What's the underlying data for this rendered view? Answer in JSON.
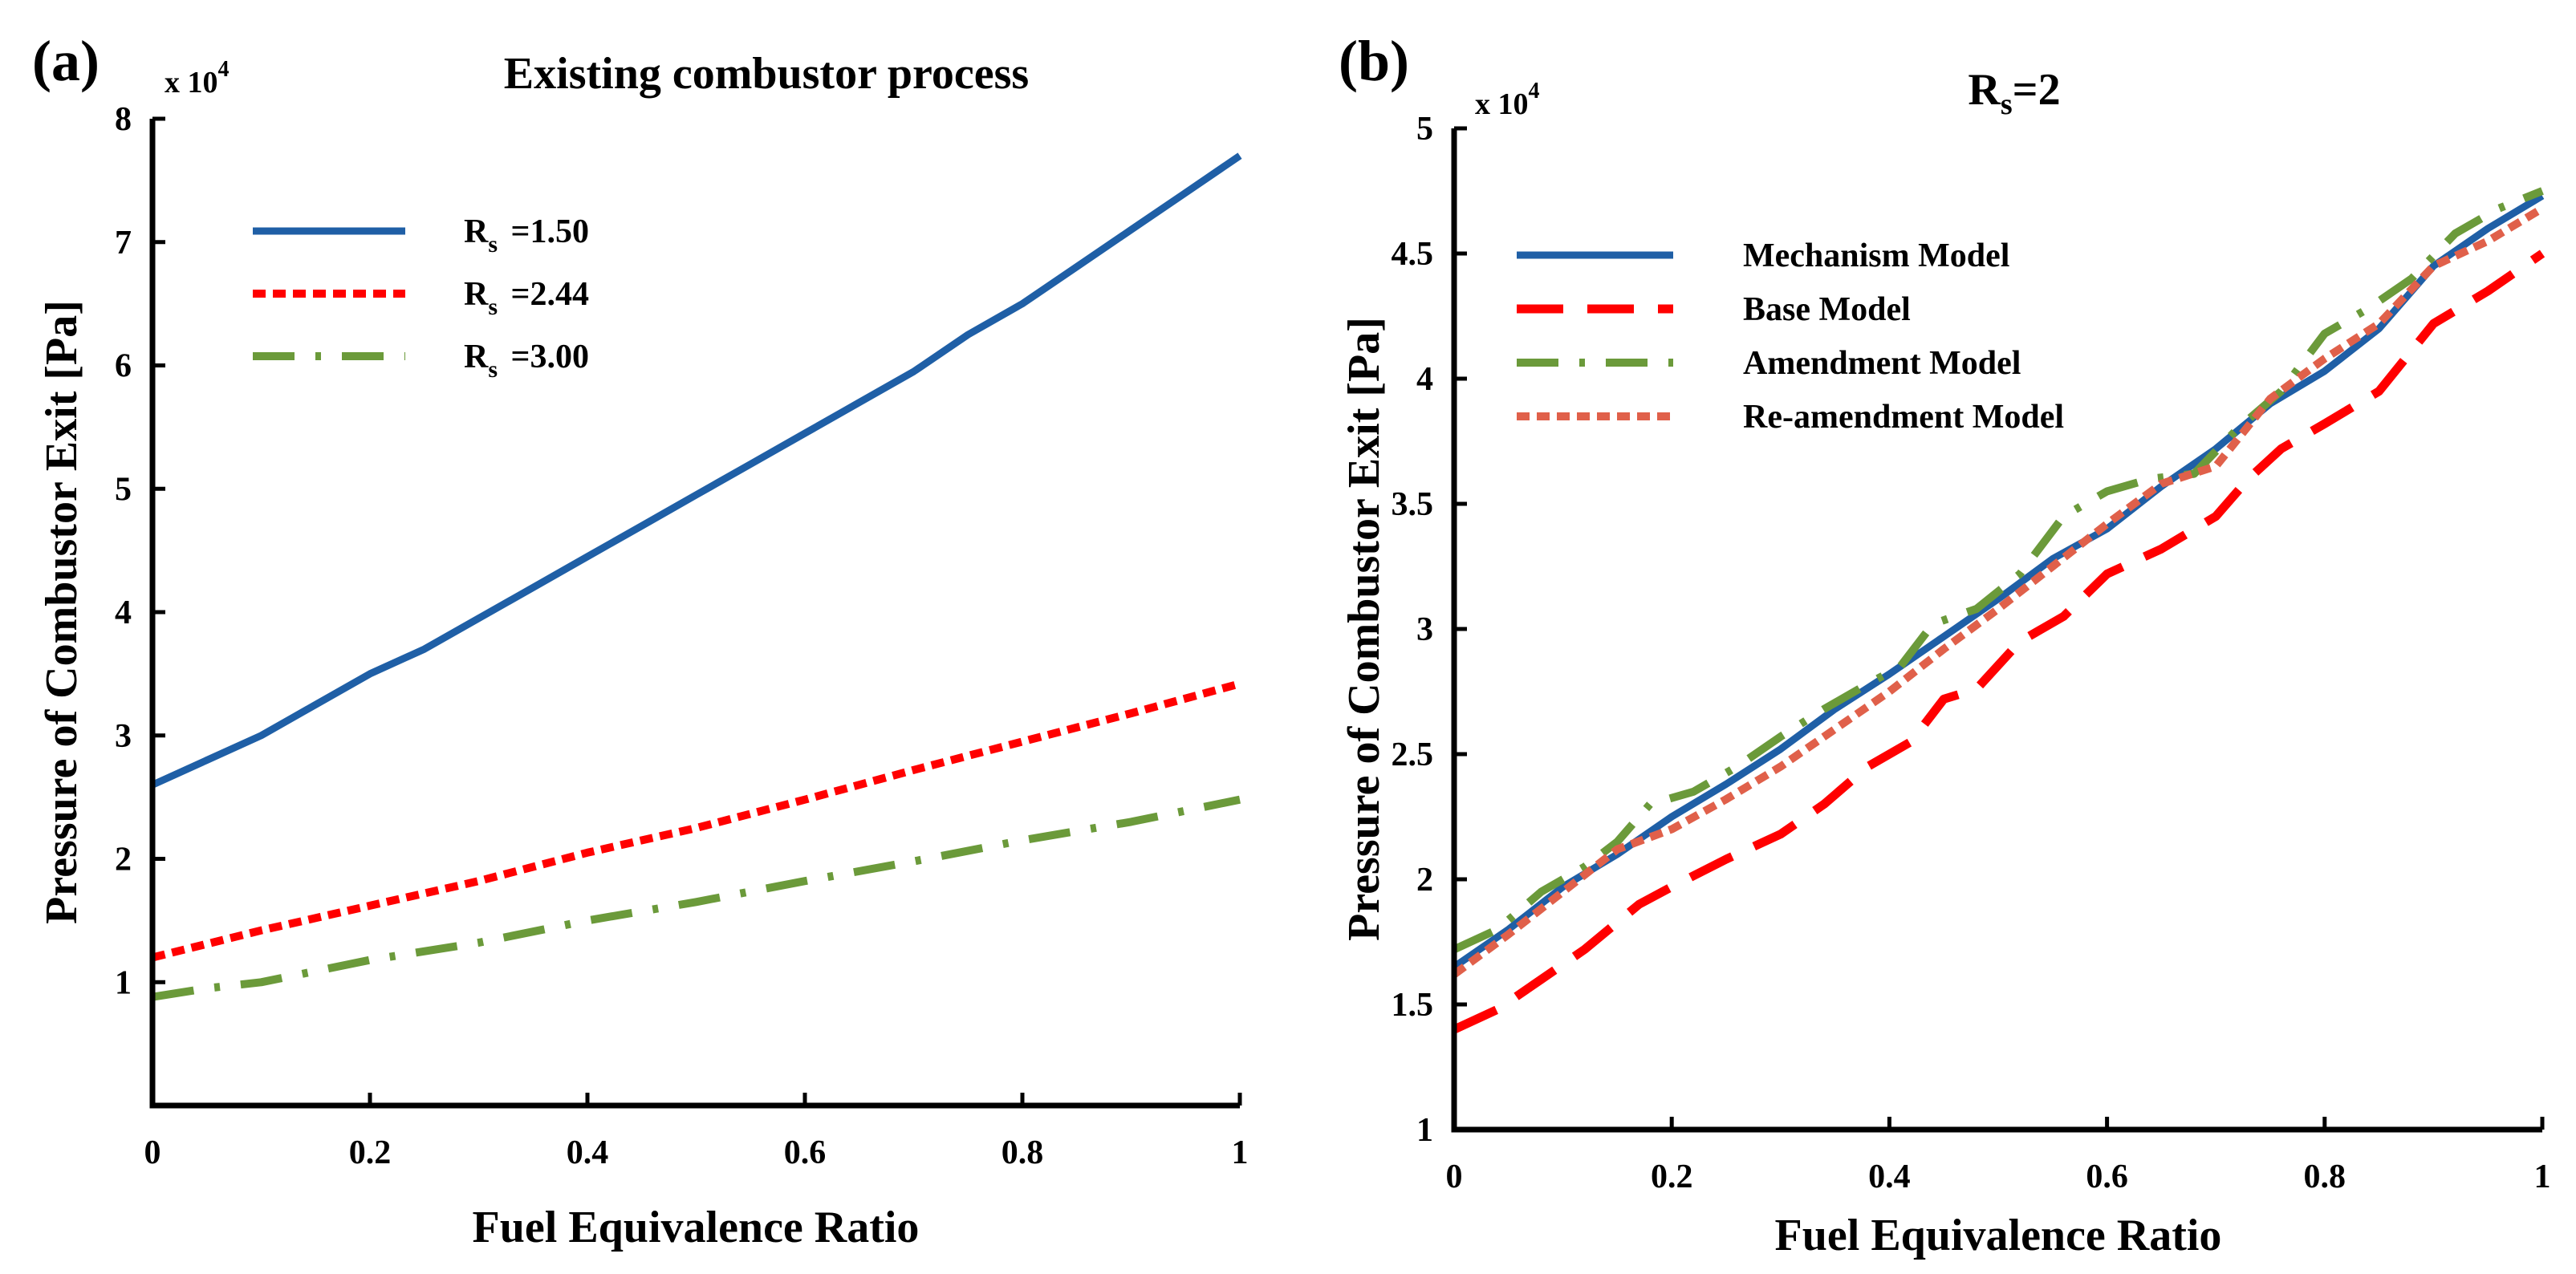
{
  "chart_data": [
    {
      "type": "line",
      "panel_label": "(a)",
      "title": "Existing combustor process",
      "xlabel": "Fuel Equivalence Ratio",
      "ylabel": "Pressure of Combustor Exit [Pa]",
      "y_multiplier": {
        "base": "x 10",
        "exp": "4"
      },
      "xlim": [
        0,
        1
      ],
      "ylim": [
        0,
        8
      ],
      "xticks": [
        0,
        0.2,
        0.4,
        0.6,
        0.8,
        1
      ],
      "xtick_labels": [
        "0",
        "0.2",
        "0.4",
        "0.6",
        "0.8",
        "1"
      ],
      "yticks": [
        1,
        2,
        3,
        4,
        5,
        6,
        7,
        8
      ],
      "ytick_labels": [
        "1",
        "2",
        "3",
        "4",
        "5",
        "6",
        "7",
        "8"
      ],
      "legend_position": "upper-left",
      "series": [
        {
          "name": "=1.50",
          "legend_sym": "R",
          "legend_sub": "s",
          "color": "#1f5fa6",
          "style": "solid",
          "x": [
            0,
            0.05,
            0.1,
            0.15,
            0.2,
            0.25,
            0.3,
            0.35,
            0.4,
            0.45,
            0.5,
            0.55,
            0.6,
            0.65,
            0.7,
            0.75,
            0.8,
            0.85,
            0.9,
            0.95,
            1.0
          ],
          "y": [
            2.6,
            2.8,
            3.0,
            3.25,
            3.5,
            3.7,
            3.95,
            4.2,
            4.45,
            4.7,
            4.95,
            5.2,
            5.45,
            5.7,
            5.95,
            6.25,
            6.5,
            6.8,
            7.1,
            7.4,
            7.7
          ]
        },
        {
          "name": "=2.44",
          "legend_sym": "R",
          "legend_sub": "s",
          "color": "#ff0000",
          "style": "dotted",
          "x": [
            0,
            0.1,
            0.2,
            0.3,
            0.4,
            0.5,
            0.6,
            0.7,
            0.8,
            0.9,
            1.0
          ],
          "y": [
            1.2,
            1.42,
            1.62,
            1.82,
            2.05,
            2.25,
            2.48,
            2.72,
            2.95,
            3.18,
            3.42
          ]
        },
        {
          "name": "=3.00",
          "legend_sym": "R",
          "legend_sub": "s",
          "color": "#6b9a3a",
          "style": "dashdot",
          "x": [
            0,
            0.05,
            0.1,
            0.2,
            0.3,
            0.4,
            0.5,
            0.6,
            0.7,
            0.8,
            0.9,
            1.0
          ],
          "y": [
            0.88,
            0.95,
            1.0,
            1.18,
            1.32,
            1.5,
            1.65,
            1.82,
            1.98,
            2.15,
            2.3,
            2.48
          ]
        }
      ]
    },
    {
      "type": "line",
      "panel_label": "(b)",
      "title_sym": "R",
      "title_sub": "s",
      "title_rest": "=2",
      "xlabel": "Fuel Equivalence Ratio",
      "ylabel": "Pressure of Combustor Exit [Pa]",
      "y_multiplier": {
        "base": "x 10",
        "exp": "4"
      },
      "xlim": [
        0,
        1
      ],
      "ylim": [
        1,
        5
      ],
      "xticks": [
        0,
        0.2,
        0.4,
        0.6,
        0.8,
        1
      ],
      "xtick_labels": [
        "0",
        "0.2",
        "0.4",
        "0.6",
        "0.8",
        "1"
      ],
      "yticks": [
        1,
        1.5,
        2,
        2.5,
        3,
        3.5,
        4,
        4.5,
        5
      ],
      "ytick_labels": [
        "1",
        "1.5",
        "2",
        "2.5",
        "3",
        "3.5",
        "4",
        "4.5",
        "5"
      ],
      "legend_position": "upper-left",
      "series": [
        {
          "name": "Mechanism Model",
          "color": "#1f5fa6",
          "style": "solid",
          "x": [
            0,
            0.05,
            0.1,
            0.15,
            0.2,
            0.25,
            0.3,
            0.35,
            0.4,
            0.45,
            0.5,
            0.55,
            0.6,
            0.65,
            0.7,
            0.75,
            0.8,
            0.85,
            0.88,
            0.9,
            0.95,
            1.0
          ],
          "y": [
            1.65,
            1.8,
            1.97,
            2.1,
            2.25,
            2.38,
            2.52,
            2.68,
            2.82,
            2.97,
            3.12,
            3.28,
            3.4,
            3.57,
            3.72,
            3.9,
            4.03,
            4.2,
            4.35,
            4.45,
            4.6,
            4.73
          ]
        },
        {
          "name": "Base Model",
          "color": "#ff0000",
          "style": "longdash",
          "x": [
            0,
            0.04,
            0.08,
            0.12,
            0.17,
            0.2,
            0.25,
            0.3,
            0.34,
            0.38,
            0.42,
            0.45,
            0.48,
            0.52,
            0.56,
            0.6,
            0.65,
            0.7,
            0.73,
            0.76,
            0.8,
            0.85,
            0.9,
            0.95,
            1.0
          ],
          "y": [
            1.4,
            1.48,
            1.6,
            1.72,
            1.9,
            1.97,
            2.08,
            2.18,
            2.3,
            2.45,
            2.55,
            2.72,
            2.76,
            2.95,
            3.05,
            3.22,
            3.32,
            3.45,
            3.6,
            3.72,
            3.82,
            3.95,
            4.22,
            4.35,
            4.5
          ]
        },
        {
          "name": "Amendment Model",
          "color": "#6b9a3a",
          "style": "dashdot",
          "x": [
            0,
            0.04,
            0.08,
            0.12,
            0.15,
            0.18,
            0.22,
            0.26,
            0.3,
            0.34,
            0.38,
            0.41,
            0.44,
            0.48,
            0.52,
            0.56,
            0.6,
            0.64,
            0.68,
            0.72,
            0.76,
            0.8,
            0.84,
            0.88,
            0.92,
            0.96,
            1.0
          ],
          "y": [
            1.72,
            1.8,
            1.95,
            2.05,
            2.15,
            2.3,
            2.35,
            2.45,
            2.57,
            2.68,
            2.78,
            2.85,
            3.02,
            3.08,
            3.22,
            3.45,
            3.55,
            3.6,
            3.62,
            3.8,
            3.95,
            4.18,
            4.28,
            4.4,
            4.58,
            4.68,
            4.75
          ]
        },
        {
          "name": "Re-amendment Model",
          "color": "#e0604a",
          "style": "dotted",
          "x": [
            0,
            0.05,
            0.1,
            0.15,
            0.2,
            0.25,
            0.3,
            0.35,
            0.4,
            0.45,
            0.5,
            0.55,
            0.6,
            0.65,
            0.7,
            0.75,
            0.8,
            0.85,
            0.9,
            0.95,
            1.0
          ],
          "y": [
            1.62,
            1.78,
            1.95,
            2.12,
            2.2,
            2.32,
            2.45,
            2.6,
            2.75,
            2.92,
            3.08,
            3.25,
            3.42,
            3.58,
            3.65,
            3.92,
            4.08,
            4.22,
            4.45,
            4.55,
            4.68
          ]
        }
      ]
    }
  ]
}
